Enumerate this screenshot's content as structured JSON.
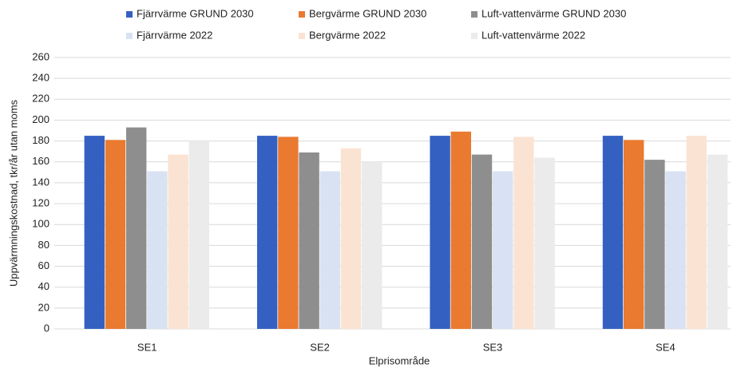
{
  "chart_data": {
    "type": "bar",
    "categories": [
      "SE1",
      "SE2",
      "SE3",
      "SE4"
    ],
    "series": [
      {
        "name": "Fjärrvärme GRUND 2030",
        "color": "#3461c1",
        "values": [
          185,
          185,
          185,
          185
        ]
      },
      {
        "name": "Bergvärme GRUND 2030",
        "color": "#e97a30",
        "values": [
          181,
          184,
          189,
          181
        ]
      },
      {
        "name": "Luft-vattenvärme GRUND 2030",
        "color": "#8e8e8e",
        "values": [
          193,
          169,
          167,
          162
        ]
      },
      {
        "name": "Fjärrvärme 2022",
        "color": "#d9e2f3",
        "values": [
          151,
          151,
          151,
          151
        ]
      },
      {
        "name": "Bergvärme 2022",
        "color": "#fbe3d3",
        "values": [
          167,
          173,
          184,
          185
        ]
      },
      {
        "name": "Luft-vattenvärme 2022",
        "color": "#ebebeb",
        "values": [
          180,
          160,
          164,
          167
        ]
      }
    ],
    "xlabel": "Elprisområde",
    "ylabel": "Uppvärmningskostnad, tkr/år utan moms",
    "ylim": [
      0,
      260
    ],
    "yticks": [
      0,
      20,
      40,
      60,
      80,
      100,
      120,
      140,
      160,
      180,
      200,
      220,
      240,
      260
    ],
    "grid": true
  }
}
